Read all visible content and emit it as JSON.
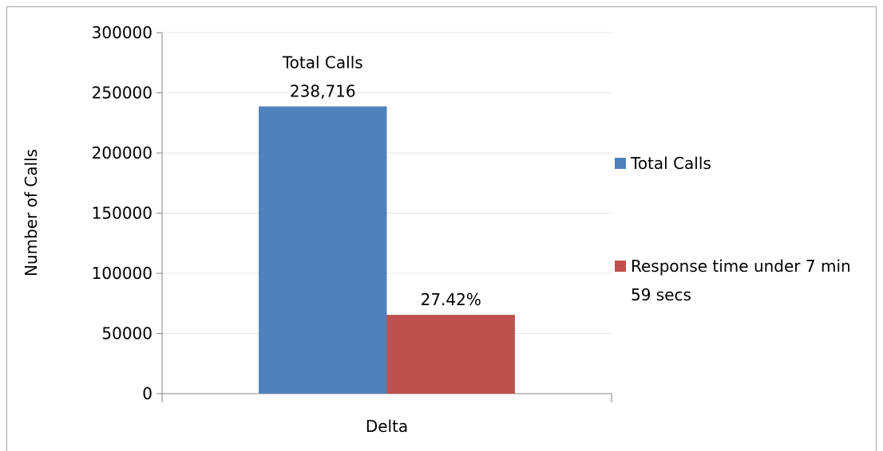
{
  "chart_data": {
    "type": "bar",
    "y_axis_label": "Number of Calls",
    "categories": [
      "Delta"
    ],
    "series": [
      {
        "name": "Total Calls",
        "color": "#4f81bd",
        "values": [
          238716
        ],
        "value_labels": [
          "Total Calls\n238,716"
        ]
      },
      {
        "name": "Response time under 7 min 59 secs",
        "color": "#c0504d",
        "values": [
          65456
        ],
        "value_labels": [
          "27.42%"
        ]
      }
    ],
    "ylim": [
      0,
      300000
    ],
    "yticks": [
      0,
      50000,
      100000,
      150000,
      200000,
      250000,
      300000
    ],
    "grid": true,
    "legend": "right"
  }
}
